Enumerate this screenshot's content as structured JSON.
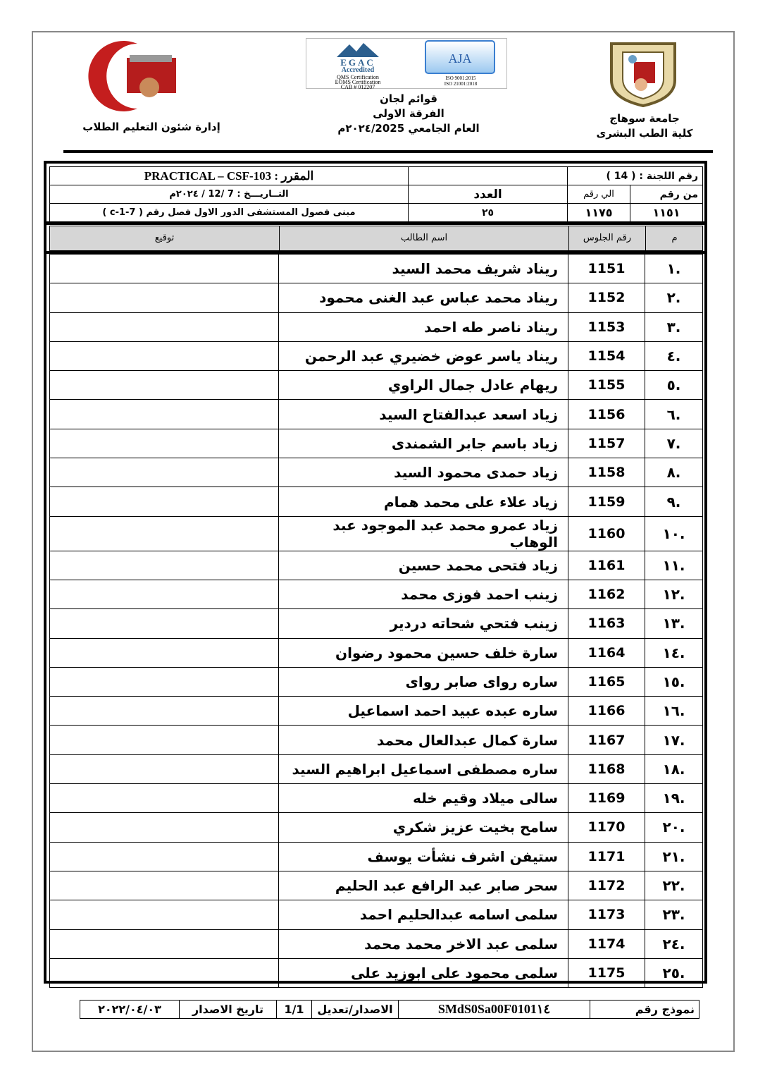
{
  "header": {
    "university": "جامعة سوهاج",
    "faculty": "كلية الطب البشرى",
    "title_lines": [
      "قوائم لجان",
      "الفرقة الاولى",
      "العام الجامعي ٢٠٢٤/2025م"
    ],
    "department": "إدارة شئون التعليم الطلاب",
    "right_logo_text": "جامعة سوهاج",
    "left_logo_text": "جامعة سوهاج كلية الطب",
    "egac": {
      "name": "EGAC",
      "accredited": "Accredited",
      "lines": [
        "QMS Certification",
        "EOMS Certification",
        "CAB # 012207"
      ]
    },
    "aja": {
      "name": "AJA",
      "lines": [
        "ISO 9001:2015",
        "ISO 21001:2018"
      ]
    }
  },
  "info": {
    "committee": "رقم اللجنة : ( 14 )",
    "course": "المقرر :  PRACTICAL – CSF-103",
    "date": "التــاريـــخ :  7 /12 / ٢٠٢٤م",
    "count_label": "العدد",
    "count": "٢٥",
    "from_label": "من رقم",
    "to_label": "الي رقم",
    "from": "١١٥١",
    "to": "١١٧٥",
    "location": "مبنى فصول المستشفى الدور الاول فصل رقم ( c-1-7 )"
  },
  "columns": {
    "index": "م",
    "seat": "رقم الجلوس",
    "name": "اسم الطالب",
    "signature": "توقيع"
  },
  "students": [
    {
      "i": ".١",
      "seat": "1151",
      "name": "ريناد شريف محمد السيد"
    },
    {
      "i": ".٢",
      "seat": "1152",
      "name": "ريناد محمد عباس عبد الغنى محمود"
    },
    {
      "i": ".٣",
      "seat": "1153",
      "name": "ريناد ناصر طه احمد"
    },
    {
      "i": ".٤",
      "seat": "1154",
      "name": "ريناد ياسر عوض خضيري عبد الرحمن"
    },
    {
      "i": ".٥",
      "seat": "1155",
      "name": "ريهام عادل جمال الراوي"
    },
    {
      "i": ".٦",
      "seat": "1156",
      "name": "زياد اسعد عبدالفتاح السيد"
    },
    {
      "i": ".٧",
      "seat": "1157",
      "name": "زياد باسم جابر الشمندى"
    },
    {
      "i": ".٨",
      "seat": "1158",
      "name": "زياد حمدى محمود السيد"
    },
    {
      "i": ".٩",
      "seat": "1159",
      "name": "زياد علاء على محمد همام"
    },
    {
      "i": ".١٠",
      "seat": "1160",
      "name": "زياد عمرو محمد عبد الموجود عبد الوهاب"
    },
    {
      "i": ".١١",
      "seat": "1161",
      "name": "زياد فتحى محمد حسين"
    },
    {
      "i": ".١٢",
      "seat": "1162",
      "name": "زينب احمد فوزى محمد"
    },
    {
      "i": ".١٣",
      "seat": "1163",
      "name": "زينب فتحي شحاته دردير"
    },
    {
      "i": ".١٤",
      "seat": "1164",
      "name": "سارة خلف حسين محمود رضوان"
    },
    {
      "i": ".١٥",
      "seat": "1165",
      "name": "ساره رواى صابر رواى"
    },
    {
      "i": ".١٦",
      "seat": "1166",
      "name": "ساره عبده عبيد احمد اسماعيل"
    },
    {
      "i": ".١٧",
      "seat": "1167",
      "name": "سارة كمال عبدالعال محمد"
    },
    {
      "i": ".١٨",
      "seat": "1168",
      "name": "ساره مصطفى اسماعيل ابراهيم السيد"
    },
    {
      "i": ".١٩",
      "seat": "1169",
      "name": "سالى ميلاد وقيم خله"
    },
    {
      "i": ".٢٠",
      "seat": "1170",
      "name": "سامح بخيت عزيز شكري"
    },
    {
      "i": ".٢١",
      "seat": "1171",
      "name": "ستيفن اشرف نشأت يوسف"
    },
    {
      "i": ".٢٢",
      "seat": "1172",
      "name": "سحر صابر عبد الرافع عبد الحليم"
    },
    {
      "i": ".٢٣",
      "seat": "1173",
      "name": "سلمى اسامه عبدالحليم احمد"
    },
    {
      "i": ".٢٤",
      "seat": "1174",
      "name": "سلمى عبد الاخر محمد محمد"
    },
    {
      "i": ".٢٥",
      "seat": "1175",
      "name": "سلمى محمود على ابوزيد على"
    }
  ],
  "footer": {
    "form_label": "نموذج رقم",
    "form_no": "SMdS0Sa00F0101١٤",
    "version_label": "الاصدار/تعديل",
    "version": "1/1",
    "issue_label": "تاريخ الاصدار",
    "issue_date": "٢٠٢٢/٠٤/٠٣"
  }
}
